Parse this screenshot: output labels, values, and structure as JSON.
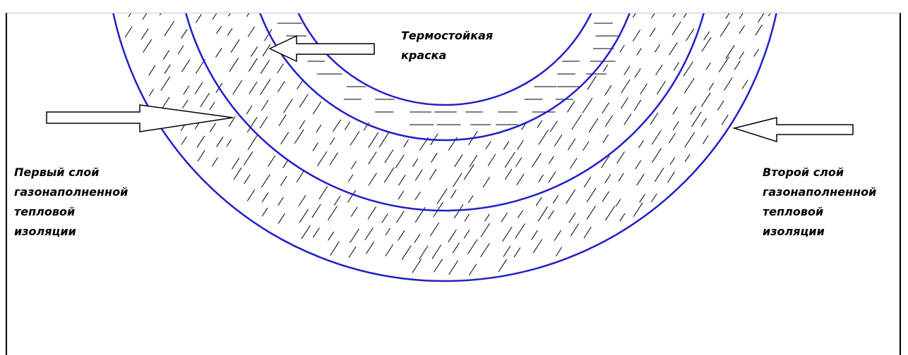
{
  "labels": {
    "paint": [
      "Термостойкая",
      "краска"
    ],
    "first_layer": [
      "Первый слой",
      "газонаполненной",
      "тепловой",
      "изоляции"
    ],
    "second_layer": [
      "Второй слой",
      "газонаполненной",
      "тепловой",
      "изоляции"
    ]
  },
  "colors": {
    "circle_stroke": "#1f1fc8",
    "hatch": "#000000",
    "arrow": "#000000"
  }
}
